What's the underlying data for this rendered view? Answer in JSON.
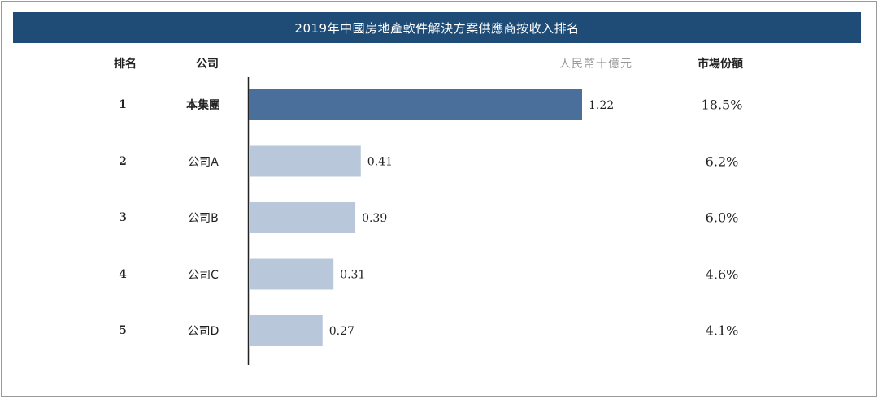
{
  "header": {
    "title": "2019年中國房地產軟件解決方案供應商按收入排名",
    "col_rank": "排名",
    "col_company": "公司",
    "col_unit": "人民幣十億元",
    "col_share": "市場份額"
  },
  "rows": [
    {
      "rank": "1",
      "company": "本集團",
      "value_label": "1.22",
      "share": "18.5%"
    },
    {
      "rank": "2",
      "company": "公司A",
      "value_label": "0.41",
      "share": "6.2%"
    },
    {
      "rank": "3",
      "company": "公司B",
      "value_label": "0.39",
      "share": "6.0%"
    },
    {
      "rank": "4",
      "company": "公司C",
      "value_label": "0.31",
      "share": "4.6%"
    },
    {
      "rank": "5",
      "company": "公司D",
      "value_label": "0.27",
      "share": "4.1%"
    }
  ],
  "colors": {
    "title_bg": "#1e4c77",
    "highlight_bar": "#4a6f9a",
    "other_bar": "#b8c8da"
  },
  "chart_data": {
    "type": "bar",
    "orientation": "horizontal",
    "title": "2019年中國房地產軟件解決方案供應商按收入排名",
    "unit": "人民幣十億元",
    "categories": [
      "本集團",
      "公司A",
      "公司B",
      "公司C",
      "公司D"
    ],
    "values": [
      1.22,
      0.41,
      0.39,
      0.31,
      0.27
    ],
    "market_share": [
      "18.5%",
      "6.2%",
      "6.0%",
      "4.6%",
      "4.1%"
    ],
    "xlim": [
      0,
      1.22
    ],
    "highlight_index": 0
  }
}
